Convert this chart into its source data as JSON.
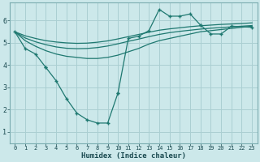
{
  "background_color": "#cce8ea",
  "grid_color": "#aacfd2",
  "line_color": "#1e7870",
  "xlabel": "Humidex (Indice chaleur)",
  "ylim": [
    0.5,
    6.8
  ],
  "xlim": [
    -0.5,
    23.5
  ],
  "yticks": [
    1,
    2,
    3,
    4,
    5,
    6
  ],
  "xtick_labels": [
    "0",
    "1",
    "2",
    "3",
    "4",
    "5",
    "6",
    "7",
    "8",
    "9",
    "10",
    "11",
    "12",
    "13",
    "14",
    "15",
    "16",
    "17",
    "18",
    "19",
    "20",
    "21",
    "22",
    "23"
  ],
  "xtick_positions": [
    0,
    1,
    2,
    3,
    4,
    5,
    6,
    7,
    8,
    9,
    10,
    11,
    12,
    13,
    14,
    15,
    16,
    17,
    18,
    19,
    20,
    21,
    22,
    23
  ],
  "series_with_markers": [
    {
      "x": [
        0,
        1,
        2,
        3
      ],
      "y": [
        5.5,
        4.75,
        4.5,
        3.9
      ]
    },
    {
      "x": [
        3,
        4,
        5,
        6,
        7,
        8,
        9,
        10
      ],
      "y": [
        3.9,
        3.3,
        2.5,
        1.85,
        1.55,
        1.4,
        1.4,
        2.75
      ]
    },
    {
      "x": [
        10,
        11,
        12,
        13,
        14,
        15,
        16,
        17,
        18
      ],
      "y": [
        2.75,
        5.2,
        5.3,
        5.55,
        6.5,
        6.2,
        6.2,
        6.3,
        5.8
      ]
    },
    {
      "x": [
        18,
        19,
        20,
        21,
        23
      ],
      "y": [
        5.8,
        5.4,
        5.4,
        5.75,
        5.7
      ]
    }
  ],
  "series_smooth": [
    {
      "x": [
        0,
        1,
        2,
        3,
        4,
        5,
        6,
        7,
        8,
        9,
        10,
        11,
        12,
        13,
        14,
        15,
        16,
        17,
        18,
        19,
        20,
        21,
        22,
        23
      ],
      "y": [
        5.5,
        5.1,
        4.85,
        4.65,
        4.5,
        4.4,
        4.35,
        4.3,
        4.3,
        4.35,
        4.45,
        4.6,
        4.75,
        4.95,
        5.1,
        5.2,
        5.3,
        5.4,
        5.5,
        5.55,
        5.6,
        5.65,
        5.7,
        5.75
      ]
    },
    {
      "x": [
        0,
        1,
        2,
        3,
        4,
        5,
        6,
        7,
        8,
        9,
        10,
        11,
        12,
        13,
        14,
        15,
        16,
        17,
        18,
        19,
        20,
        21,
        22,
        23
      ],
      "y": [
        5.5,
        5.22,
        5.05,
        4.92,
        4.82,
        4.76,
        4.74,
        4.75,
        4.79,
        4.86,
        4.96,
        5.07,
        5.17,
        5.28,
        5.38,
        5.46,
        5.52,
        5.57,
        5.62,
        5.66,
        5.69,
        5.72,
        5.75,
        5.78
      ]
    },
    {
      "x": [
        0,
        1,
        2,
        3,
        4,
        5,
        6,
        7,
        8,
        9,
        10,
        11,
        12,
        13,
        14,
        15,
        16,
        17,
        18,
        19,
        20,
        21,
        22,
        23
      ],
      "y": [
        5.5,
        5.32,
        5.2,
        5.1,
        5.04,
        5.0,
        4.98,
        4.99,
        5.03,
        5.09,
        5.18,
        5.28,
        5.38,
        5.48,
        5.57,
        5.63,
        5.68,
        5.73,
        5.77,
        5.8,
        5.83,
        5.85,
        5.87,
        5.9
      ]
    }
  ]
}
